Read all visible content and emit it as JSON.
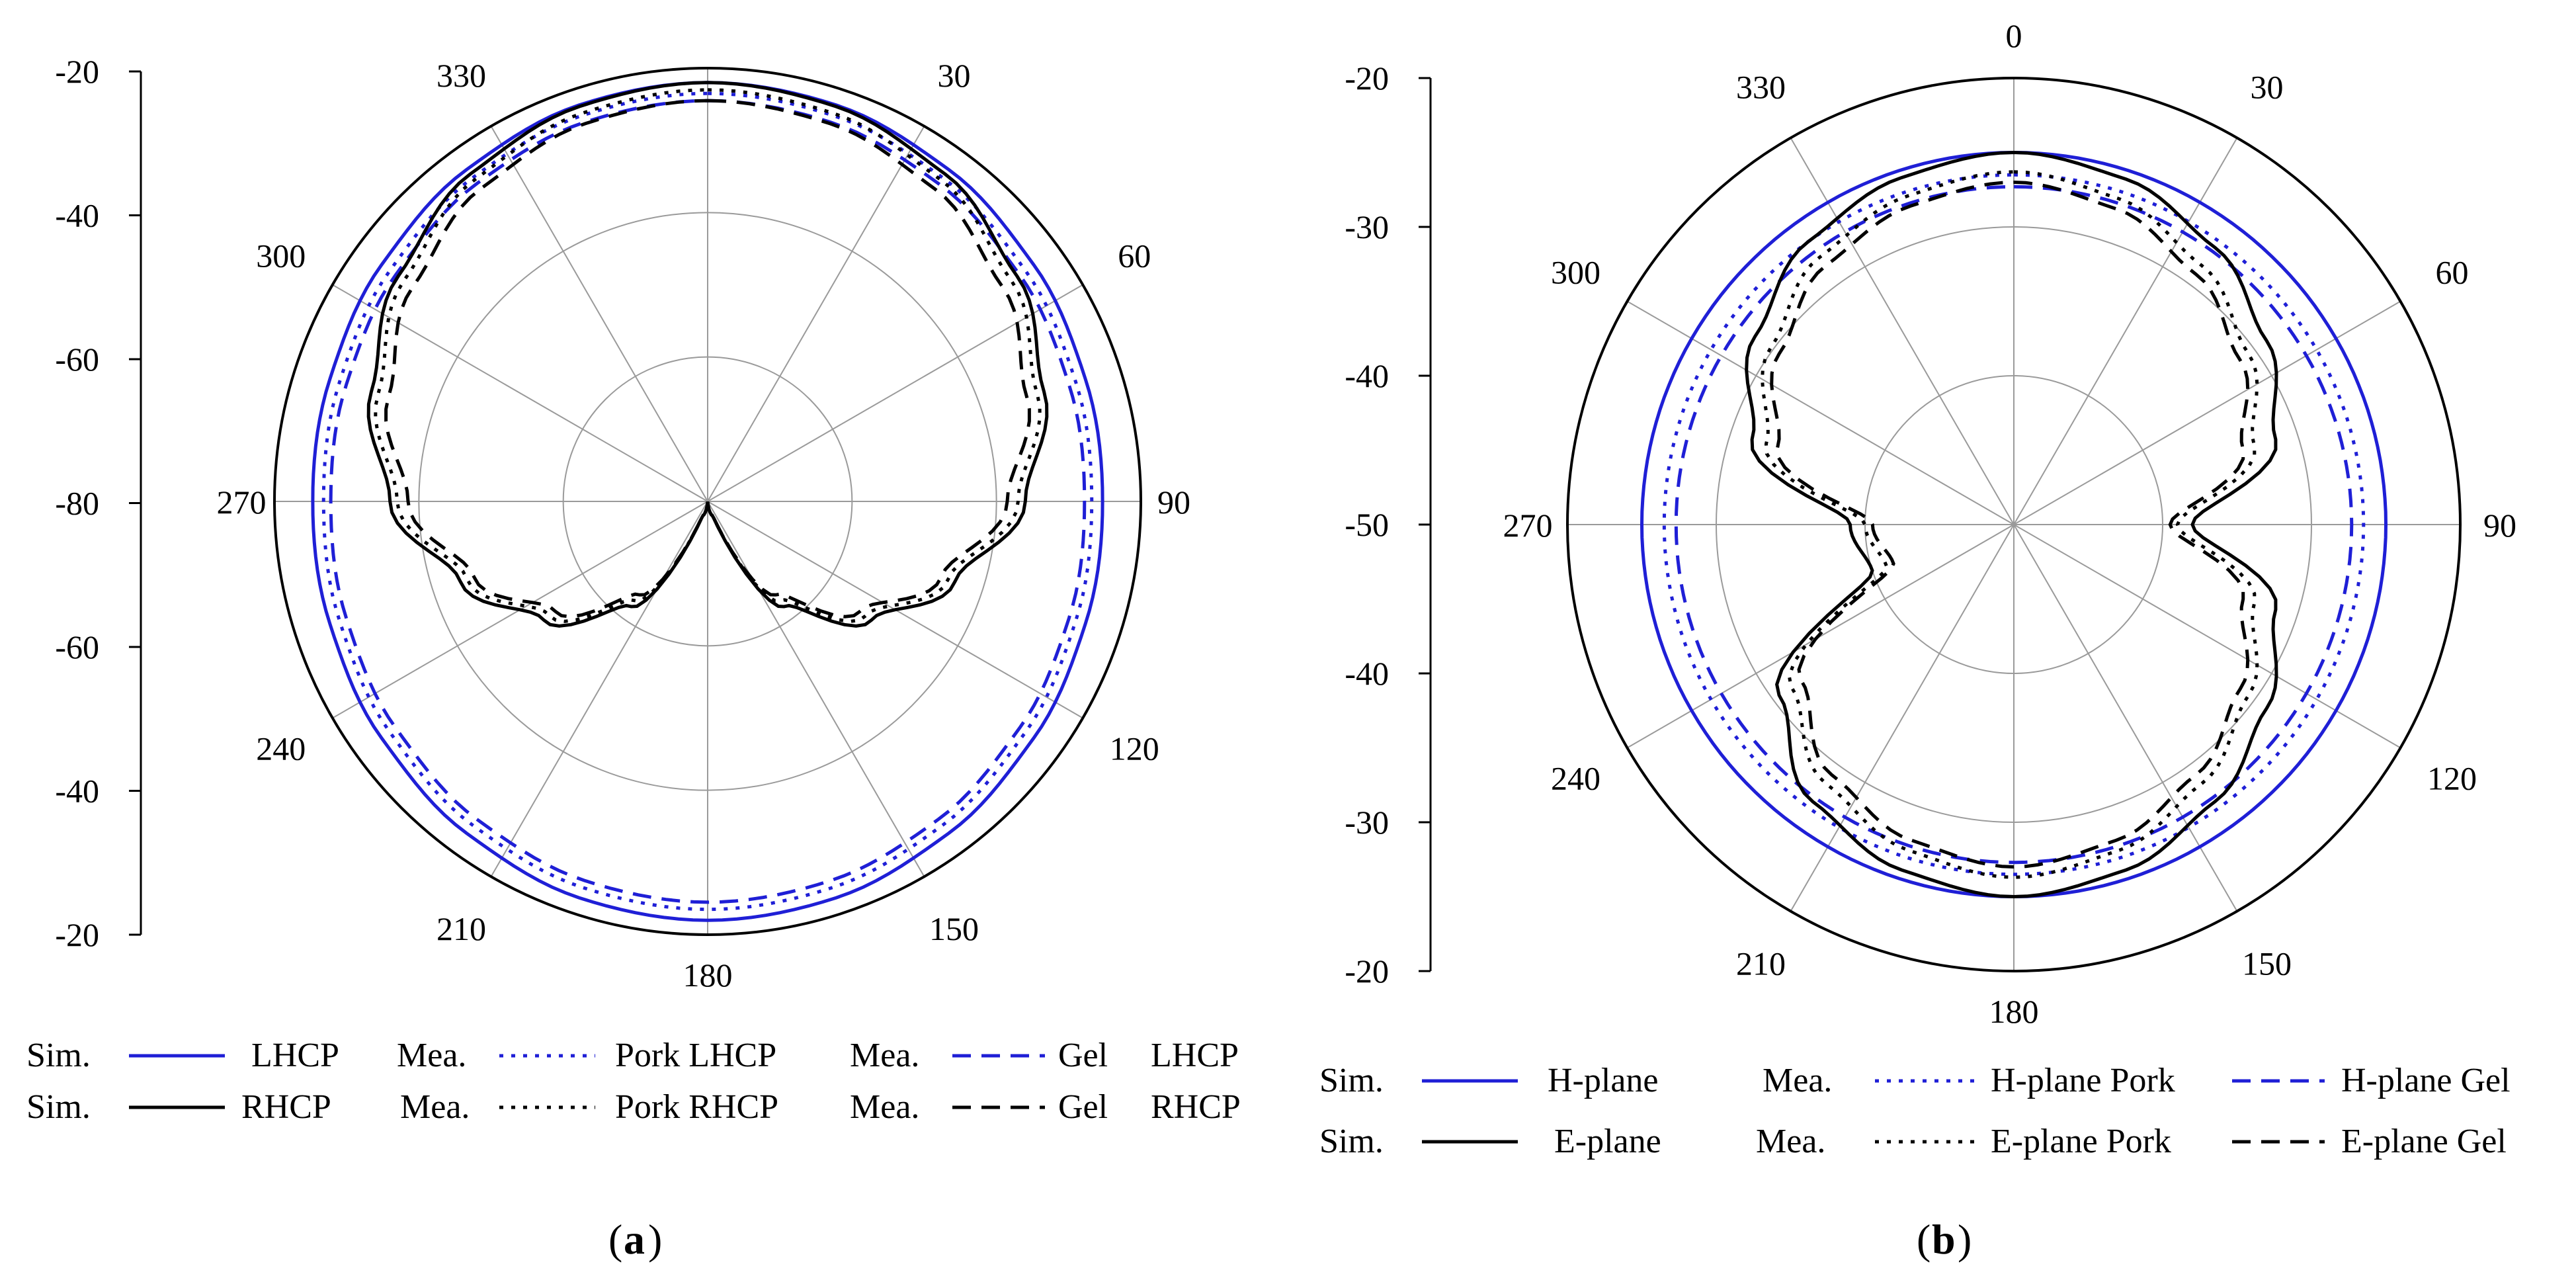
{
  "chart_data": [
    {
      "type": "polar",
      "panel_label": "(a)",
      "caption_letter": "a",
      "radial_ticks": [
        "-20",
        "-40",
        "-60",
        "-80",
        "-60",
        "-40",
        "-20"
      ],
      "radial_range_db": [
        -80,
        -20
      ],
      "angle_labels": [
        "330",
        "30",
        "60",
        "90",
        "120",
        "150",
        "180",
        "210",
        "240",
        "270",
        "300"
      ],
      "angle_values": [
        330,
        30,
        60,
        90,
        120,
        150,
        180,
        210,
        240,
        270,
        300
      ],
      "series": [
        {
          "id": "a-sim-lhcp",
          "name": "Sim. LHCP",
          "color": "#1f1fd6",
          "dash": "solid",
          "r": [
            -22,
            -22.3,
            -23.2,
            -24.2,
            -25,
            -25.3,
            -25,
            -24.2,
            -23.2,
            -22.3,
            -22,
            -22.3,
            -23.2,
            -24.2,
            -25,
            -25.3,
            -25,
            -24.2,
            -23.2,
            -22.3
          ]
        },
        {
          "id": "a-mea-pork-lhcp",
          "name": "Mea. Pork LHCP",
          "color": "#1f1fd6",
          "dash": "dot",
          "r": [
            -23.5,
            -23.8,
            -24.6,
            -25.6,
            -26.4,
            -26.8,
            -26.4,
            -25.6,
            -24.6,
            -23.8,
            -23.5,
            -23.8,
            -24.6,
            -25.6,
            -26.4,
            -26.8,
            -26.4,
            -25.6,
            -24.6,
            -23.8
          ]
        },
        {
          "id": "a-mea-gel-lhcp",
          "name": "Mea. Gel LHCP",
          "color": "#1f1fd6",
          "dash": "dash",
          "r": [
            -24.5,
            -24.8,
            -25.6,
            -26.6,
            -27.4,
            -27.8,
            -27.4,
            -26.6,
            -25.6,
            -24.8,
            -24.5,
            -24.8,
            -25.6,
            -26.6,
            -27.4,
            -27.8,
            -27.4,
            -26.6,
            -25.6,
            -24.8
          ]
        },
        {
          "id": "a-sim-rhcp",
          "name": "Sim. RHCP",
          "color": "#000000",
          "dash": "solid",
          "r": [
            -22,
            -22.5,
            -24,
            -27,
            -31,
            -36,
            -44,
            -52,
            -62,
            -78,
            -80,
            -78,
            -62,
            -52,
            -44,
            -36,
            -31,
            -27,
            -24,
            -22.5
          ]
        },
        {
          "id": "a-mea-pork-rhcp",
          "name": "Mea. Pork RHCP",
          "color": "#000000",
          "dash": "dot",
          "r": [
            -23,
            -23.5,
            -25,
            -28,
            -32,
            -37,
            -45,
            -53,
            -63,
            -78,
            -80,
            -78,
            -63,
            -53,
            -45,
            -37,
            -32,
            -28,
            -25,
            -23.5
          ]
        },
        {
          "id": "a-mea-gel-rhcp",
          "name": "Mea. Gel RHCP",
          "color": "#000000",
          "dash": "dash",
          "r": [
            -24.5,
            -25,
            -26.5,
            -29.5,
            -33.5,
            -38.5,
            -46,
            -54,
            -64,
            -78,
            -80,
            -78,
            -64,
            -54,
            -46,
            -38.5,
            -33.5,
            -29.5,
            -26.5,
            -25
          ]
        }
      ],
      "legend_rows": [
        [
          "Sim.",
          "LHCP",
          "Mea.",
          "Pork LHCP",
          "Mea.",
          "Gel",
          "LHCP"
        ],
        [
          "Sim.",
          "RHCP",
          "Mea.",
          "Pork RHCP",
          "Mea.",
          "Gel",
          "RHCP"
        ]
      ]
    },
    {
      "type": "polar",
      "panel_label": "(b)",
      "caption_letter": "b",
      "radial_ticks": [
        "-20",
        "-30",
        "-40",
        "-50",
        "-40",
        "-30",
        "-20"
      ],
      "radial_range_db": [
        -50,
        -20
      ],
      "angle_labels": [
        "0",
        "330",
        "30",
        "60",
        "90",
        "120",
        "150",
        "180",
        "210",
        "240",
        "270",
        "300"
      ],
      "angle_values": [
        0,
        330,
        30,
        60,
        90,
        120,
        150,
        180,
        210,
        240,
        270,
        300
      ],
      "series": [
        {
          "id": "b-sim-h",
          "name": "Sim. H-plane",
          "color": "#1f1fd6",
          "dash": "solid",
          "r": [
            -25,
            -25,
            -25,
            -25,
            -25,
            -25,
            -25,
            -25,
            -25,
            -25,
            -25,
            -25,
            -25,
            -25,
            -25,
            -25,
            -25,
            -25,
            -25,
            -25
          ]
        },
        {
          "id": "b-mea-h-pork",
          "name": "Mea. H-plane Pork",
          "color": "#1f1fd6",
          "dash": "dot",
          "r": [
            -26.5,
            -26.5,
            -26.5,
            -26.5,
            -26.5,
            -26.5,
            -26.5,
            -26.5,
            -26.5,
            -26.5,
            -26.5,
            -26.5,
            -26.5,
            -26.5,
            -26.5,
            -26.5,
            -26.5,
            -26.5,
            -26.5,
            -26.5
          ]
        },
        {
          "id": "b-mea-h-gel",
          "name": "Mea. H-plane Gel",
          "color": "#1f1fd6",
          "dash": "dash",
          "r": [
            -27.3,
            -27.3,
            -27.3,
            -27.3,
            -27.3,
            -27.3,
            -27.3,
            -27.3,
            -27.3,
            -27.3,
            -27.3,
            -27.3,
            -27.3,
            -27.3,
            -27.3,
            -27.3,
            -27.3,
            -27.3,
            -27.3,
            -27.3
          ]
        },
        {
          "id": "b-sim-e",
          "name": "Sim. E-plane",
          "color": "#000000",
          "dash": "solid",
          "r": [
            -25,
            -25.6,
            -27,
            -29,
            -31.5,
            -38,
            -31.5,
            -29,
            -27,
            -25.6,
            -25,
            -25.6,
            -27,
            -30.5,
            -40,
            -39,
            -31.5,
            -28.5,
            -26.5,
            -25.5
          ]
        },
        {
          "id": "b-mea-e-pork",
          "name": "Mea. E-plane Pork",
          "color": "#000000",
          "dash": "dot",
          "r": [
            -26.3,
            -27,
            -28.5,
            -30.5,
            -33,
            -39,
            -33,
            -30.5,
            -28.5,
            -27,
            -26.3,
            -27,
            -28.5,
            -31.5,
            -41,
            -40,
            -32.5,
            -29.8,
            -27.8,
            -26.8
          ]
        },
        {
          "id": "b-mea-e-gel",
          "name": "Mea. E-plane Gel",
          "color": "#000000",
          "dash": "dash",
          "r": [
            -27,
            -27.7,
            -29.2,
            -31.2,
            -33.8,
            -39.5,
            -33.8,
            -31.2,
            -29.2,
            -27.7,
            -27,
            -27.7,
            -29.2,
            -32.3,
            -41.5,
            -40.5,
            -33.3,
            -30.5,
            -28.5,
            -27.5
          ]
        }
      ],
      "legend_rows": [
        [
          "Sim.",
          "H-plane",
          "Mea.",
          "H-plane Pork",
          "H-plane Gel"
        ],
        [
          "Sim.",
          "E-plane",
          "Mea.",
          "E-plane Pork",
          "E-plane Gel"
        ]
      ]
    }
  ]
}
